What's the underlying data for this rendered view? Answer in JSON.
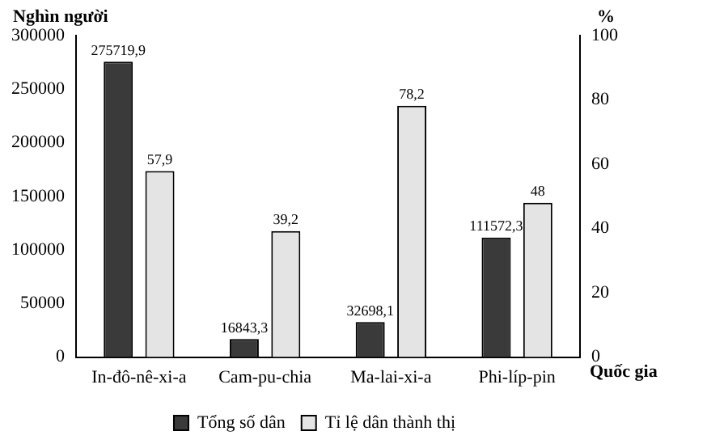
{
  "chart_data": {
    "type": "bar",
    "ylabel": "Nghìn người",
    "y2label": "%",
    "xlabel": "Quốc gia",
    "categories": [
      "In-đô-nê-xi-a",
      "Cam-pu-chia",
      "Ma-lai-xi-a",
      "Phi-líp-pin"
    ],
    "series": [
      {
        "name": "Tổng số dân",
        "color": "#3a3a3a",
        "values": [
          275719.9,
          16843.3,
          32698.1,
          111572.3
        ],
        "value_labels": [
          "275719,9",
          "16843,3",
          "32698,1",
          "111572,3"
        ]
      },
      {
        "name": "Tỉ lệ dân thành thị",
        "color": "#e4e4e4",
        "axis": "y2",
        "values": [
          57.9,
          39.2,
          78.2,
          48
        ],
        "value_labels": [
          "57,9",
          "39,2",
          "78,2",
          "48"
        ]
      }
    ],
    "ylim": [
      0,
      300000
    ],
    "yticks": [
      0,
      50000,
      100000,
      150000,
      200000,
      250000,
      300000
    ],
    "y2lim": [
      0,
      100
    ],
    "y2ticks": [
      0,
      20,
      40,
      60,
      80,
      100
    ],
    "grid": false,
    "legend": "bottom"
  }
}
